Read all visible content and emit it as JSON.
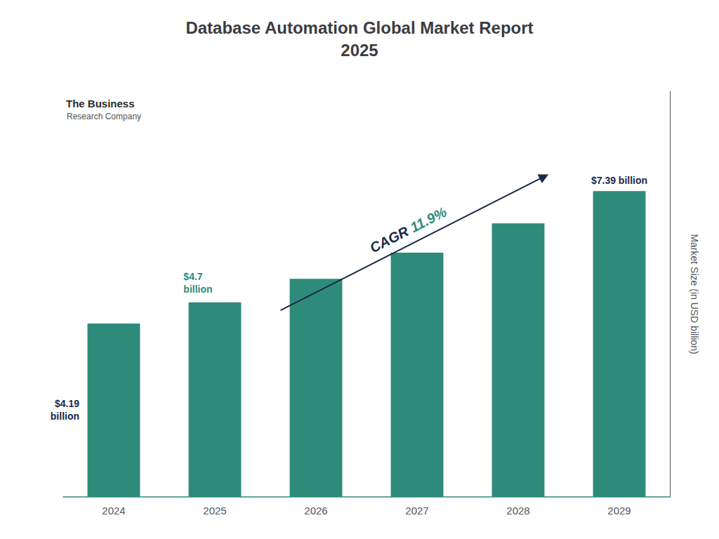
{
  "chart_data": {
    "type": "bar",
    "title": "Database Automation Global Market Report\n2025",
    "categories": [
      "2024",
      "2025",
      "2026",
      "2027",
      "2028",
      "2029"
    ],
    "values": [
      4.19,
      4.7,
      5.27,
      5.9,
      6.61,
      7.39
    ],
    "color": "#2e8b7a",
    "ylabel": "Market Size (in USD billion)",
    "ylim": [
      0,
      9.8
    ],
    "grid": false,
    "tick_labels": "x",
    "annotations": [
      {
        "text": "$4.19\nbillion",
        "category": "2024",
        "color": "#1a2a4a"
      },
      {
        "text": "$4.7\nbillion",
        "category": "2025",
        "color": "#2e8b7a"
      },
      {
        "text": "$7.39 billion",
        "category": "2029",
        "color": "#1a2a4a"
      }
    ],
    "cagr": [
      {
        "text": "CAGR ",
        "color": "#1a2a4a"
      },
      {
        "text": "11.9%",
        "color": "#2e8b7a"
      }
    ],
    "logo": [
      {
        "text": "The Business",
        "color": "#2a2a2a"
      },
      {
        "text": "Research Company",
        "color": "#555555"
      }
    ]
  }
}
